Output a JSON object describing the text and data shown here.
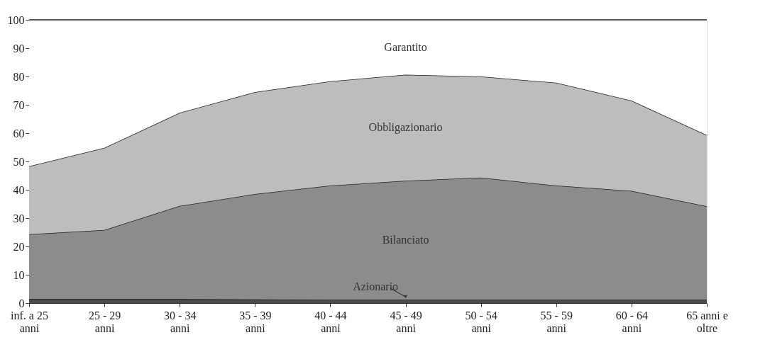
{
  "chart_data": {
    "type": "area",
    "stacked": true,
    "categories": [
      "inf. a 25 anni",
      "25 - 29 anni",
      "30 - 34 anni",
      "35 - 39 anni",
      "40 - 44 anni",
      "45 - 49 anni",
      "50 - 54 anni",
      "55 - 59 anni",
      "60 - 64 anni",
      "65 anni e oltre"
    ],
    "series": [
      {
        "name": "Azionario",
        "color": "#4a4a4a",
        "values": [
          1.5,
          1.5,
          1.5,
          1.3,
          1.2,
          1.2,
          1.2,
          1.2,
          1.2,
          1.2
        ]
      },
      {
        "name": "Bilanciato",
        "color": "#8c8c8c",
        "values": [
          22.8,
          24.3,
          32.8,
          37.2,
          40.3,
          42.0,
          43.1,
          40.3,
          38.4,
          33.0
        ]
      },
      {
        "name": "Obbligazionario",
        "color": "#bdbdbd",
        "values": [
          24.0,
          29.0,
          32.9,
          36.0,
          36.8,
          37.4,
          35.7,
          36.3,
          31.9,
          25.1
        ]
      },
      {
        "name": "Garantito",
        "color": "#ffffff",
        "values": [
          51.7,
          45.2,
          32.8,
          25.5,
          21.7,
          19.4,
          20.0,
          22.2,
          28.5,
          40.7
        ]
      }
    ],
    "ylim": [
      0,
      100
    ],
    "yticks": [
      0,
      10,
      20,
      30,
      40,
      50,
      60,
      70,
      80,
      90,
      100
    ],
    "grid": false
  }
}
